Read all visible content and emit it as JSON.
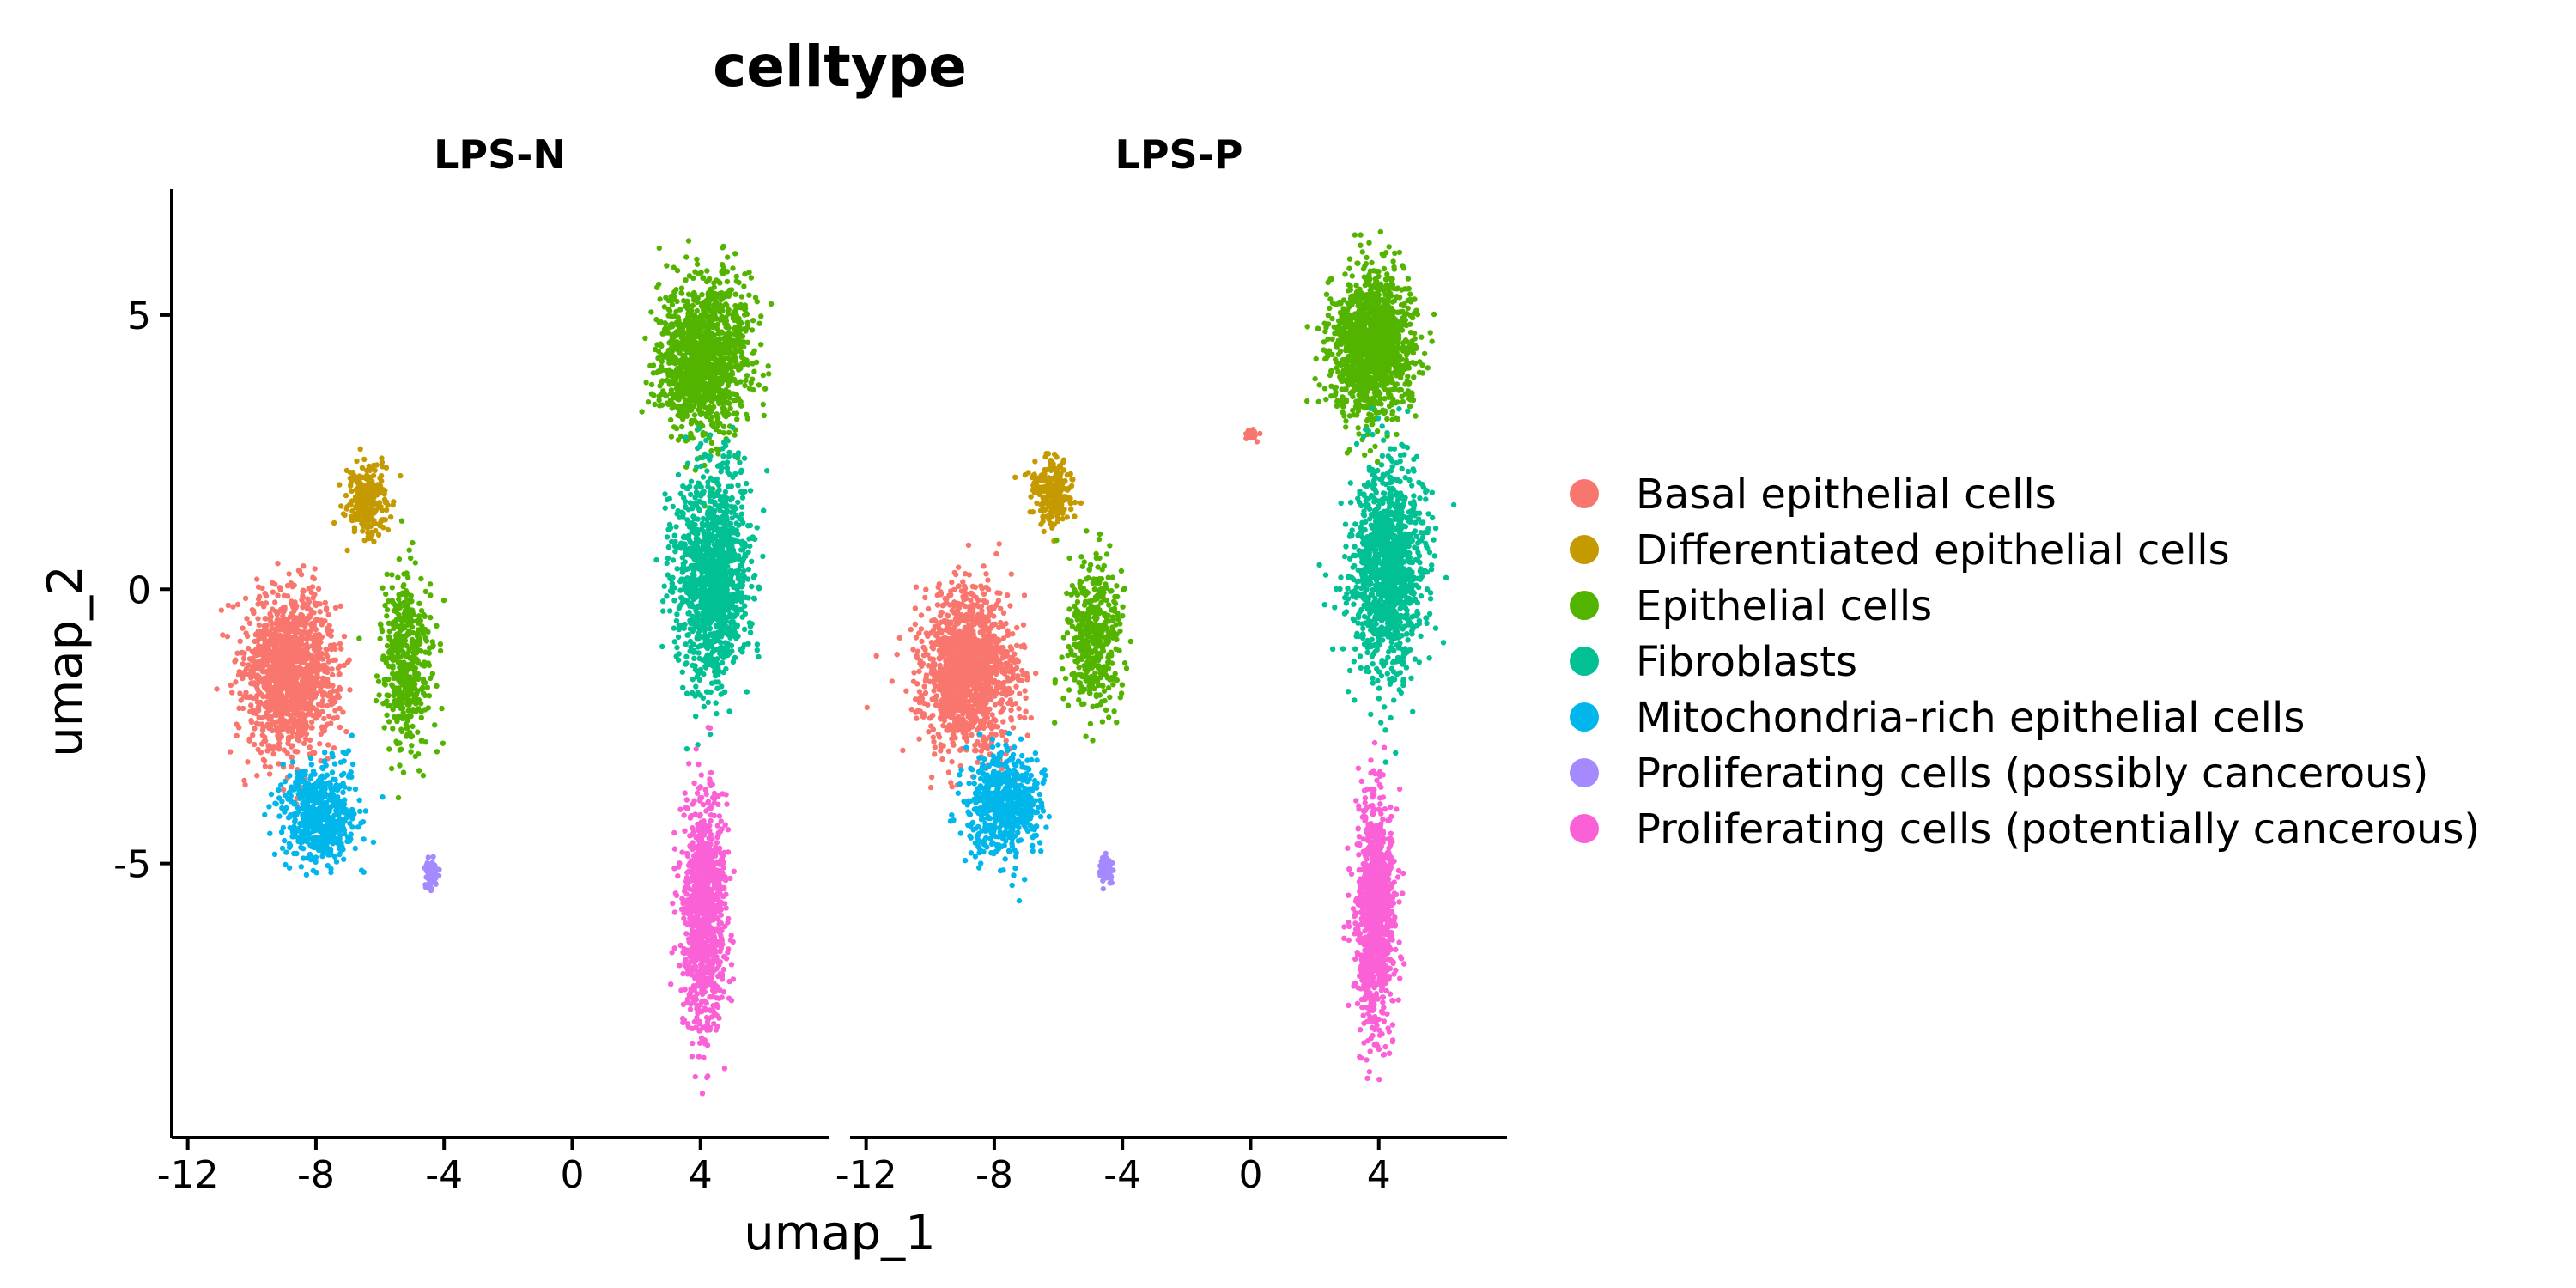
{
  "chart_data": {
    "type": "scatter",
    "title": "celltype",
    "xlabel": "umap_1",
    "ylabel": "umap_2",
    "xlim": [
      -12.5,
      8
    ],
    "ylim": [
      -10,
      7.3
    ],
    "xticks": [
      -12,
      -8,
      -4,
      0,
      4
    ],
    "xtick_labels": [
      "-12",
      "-8",
      "-4",
      "0",
      "4"
    ],
    "yticks": [
      5,
      0,
      -5
    ],
    "ytick_labels": [
      "5",
      "0",
      "-5"
    ],
    "legend_title": "",
    "legend_position": "right",
    "grid": false,
    "panels": [
      {
        "label": "LPS-N",
        "clusters": [
          {
            "series": "Basal epithelial cells",
            "cx": -8.8,
            "cy": -1.5,
            "sx": 1.2,
            "sy": 1.2,
            "n": 1400
          },
          {
            "series": "Differentiated epithelial cells",
            "cx": -6.4,
            "cy": 1.6,
            "sx": 0.55,
            "sy": 0.55,
            "n": 260
          },
          {
            "series": "Epithelial cells",
            "cx": -5.2,
            "cy": -1.3,
            "sx": 0.65,
            "sy": 1.3,
            "n": 450
          },
          {
            "series": "Epithelial cells",
            "cx": 4.1,
            "cy": 4.2,
            "sx": 1.15,
            "sy": 1.15,
            "n": 1300
          },
          {
            "series": "Fibroblasts",
            "cx": 4.4,
            "cy": 0.2,
            "sx": 0.95,
            "sy": 1.6,
            "n": 1300
          },
          {
            "series": "Mitochondria-rich epithelial cells",
            "cx": -7.9,
            "cy": -4.1,
            "sx": 0.95,
            "sy": 0.75,
            "n": 600
          },
          {
            "series": "Proliferating cells (possibly cancerous)",
            "cx": -4.4,
            "cy": -5.2,
            "sx": 0.18,
            "sy": 0.22,
            "n": 70
          },
          {
            "series": "Proliferating cells (potentially cancerous)",
            "cx": 4.1,
            "cy": -5.9,
            "sx": 0.55,
            "sy": 1.7,
            "n": 1100
          }
        ]
      },
      {
        "label": "LPS-P",
        "clusters": [
          {
            "series": "Basal epithelial cells",
            "cx": -8.8,
            "cy": -1.5,
            "sx": 1.2,
            "sy": 1.2,
            "n": 1400
          },
          {
            "series": "Basal epithelial cells",
            "cx": 0.0,
            "cy": 2.8,
            "sx": 0.25,
            "sy": 0.12,
            "n": 18
          },
          {
            "series": "Differentiated epithelial cells",
            "cx": -6.2,
            "cy": 1.8,
            "sx": 0.55,
            "sy": 0.5,
            "n": 260
          },
          {
            "series": "Epithelial cells",
            "cx": -4.9,
            "cy": -0.9,
            "sx": 0.7,
            "sy": 1.2,
            "n": 450
          },
          {
            "series": "Epithelial cells",
            "cx": 3.8,
            "cy": 4.4,
            "sx": 1.1,
            "sy": 1.1,
            "n": 1300
          },
          {
            "series": "Fibroblasts",
            "cx": 4.3,
            "cy": 0.4,
            "sx": 0.95,
            "sy": 1.55,
            "n": 1300
          },
          {
            "series": "Mitochondria-rich epithelial cells",
            "cx": -7.7,
            "cy": -3.9,
            "sx": 0.95,
            "sy": 0.75,
            "n": 600
          },
          {
            "series": "Proliferating cells (possibly cancerous)",
            "cx": -4.5,
            "cy": -5.1,
            "sx": 0.18,
            "sy": 0.22,
            "n": 70
          },
          {
            "series": "Proliferating cells (potentially cancerous)",
            "cx": 3.9,
            "cy": -5.9,
            "sx": 0.5,
            "sy": 1.7,
            "n": 1100
          }
        ]
      }
    ],
    "series": [
      {
        "name": "Basal epithelial cells",
        "color": "#F8766D"
      },
      {
        "name": "Differentiated epithelial cells",
        "color": "#C49A00"
      },
      {
        "name": "Epithelial cells",
        "color": "#53B400"
      },
      {
        "name": "Fibroblasts",
        "color": "#00C094"
      },
      {
        "name": "Mitochondria-rich epithelial cells",
        "color": "#00B6EB"
      },
      {
        "name": "Proliferating cells (possibly cancerous)",
        "color": "#A58AFF"
      },
      {
        "name": "Proliferating cells (potentially cancerous)",
        "color": "#FB61D7"
      }
    ]
  }
}
